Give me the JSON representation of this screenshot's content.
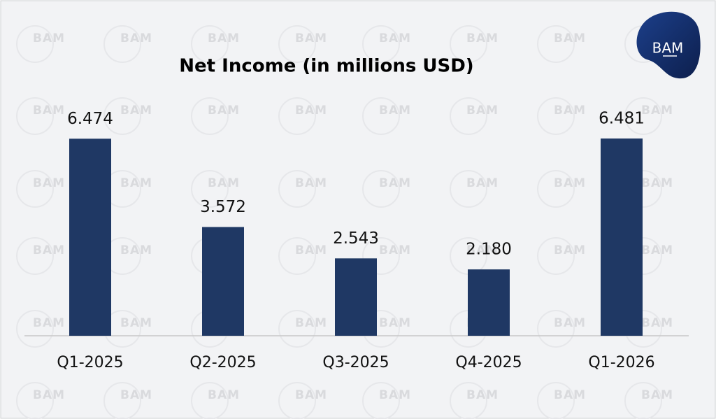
{
  "chart_data": {
    "type": "bar",
    "title": "Net Income (in millions USD)",
    "categories": [
      "Q1-2025",
      "Q2-2025",
      "Q3-2025",
      "Q4-2025",
      "Q1-2026"
    ],
    "values": [
      6.474,
      3.572,
      2.543,
      2.18,
      6.481
    ],
    "value_labels": [
      "6.474",
      "3.572",
      "2.543",
      "2.180",
      "6.481"
    ],
    "color": "#1f3864"
  },
  "logo": "BAM",
  "watermark": "BAM"
}
